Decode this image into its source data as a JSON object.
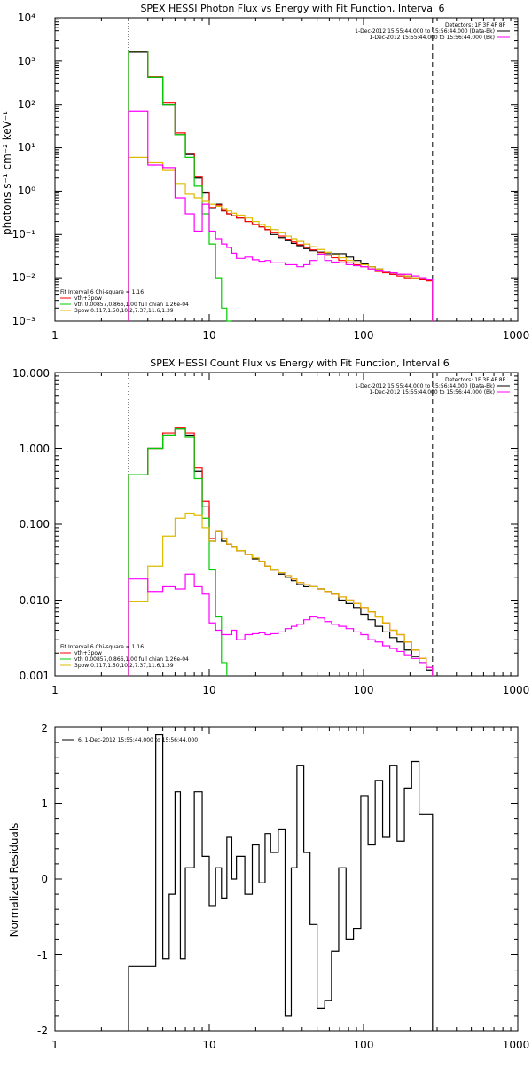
{
  "chart_data": [
    {
      "type": "line",
      "title": "SPEX HESSI Photon Flux vs Energy with Fit Function, Interval 6",
      "ylabel": "photons s⁻¹ cm⁻² keV⁻¹",
      "xlabel": "",
      "xscale": "log",
      "yscale": "log",
      "xlim": [
        1,
        1000
      ],
      "ylim": [
        0.001,
        10000
      ],
      "x_ticks": [
        "1",
        "10",
        "100",
        "1000"
      ],
      "y_ticks": [
        "10⁻³",
        "10⁻²",
        "10⁻¹",
        "10⁰",
        "10¹",
        "10²",
        "10³",
        "10⁴"
      ],
      "vlines": [
        3,
        280
      ],
      "legend_right": {
        "header": "Detectors: 1F 3F 4F 8F",
        "lines": [
          "1-Dec-2012 15:55:44.000 to 15:56:44.000 (Data-Bk)",
          "1-Dec-2012 15:55:44.000 to 15:56:44.000 (Bk)"
        ],
        "colors": [
          "#000000",
          "#ff00ff"
        ]
      },
      "legend_left": {
        "header": "Fit Interval 6   Chi-square = 1.16",
        "lines": [
          "vth+3pow",
          "vth 0.00857,0.866,1.00  full chian 1.26e-04",
          "3pow 0.117,1.50,10.2,7.37,11.6,1.39"
        ],
        "colors": [
          "#ff0000",
          "#00cc00",
          "#ddbb00"
        ]
      },
      "edges": [
        3,
        4,
        5,
        6,
        7,
        8,
        9,
        10,
        11,
        12,
        13,
        14,
        15,
        17,
        19,
        21,
        23,
        25,
        28,
        31,
        34,
        37,
        41,
        45,
        50,
        56,
        62,
        69,
        77,
        86,
        96,
        107,
        119,
        133,
        148,
        165,
        184,
        205,
        229,
        255,
        280
      ],
      "series": [
        {
          "name": "Data-Bk",
          "color": "#000000",
          "values": [
            1600,
            420,
            100,
            20,
            7,
            2,
            0.9,
            0.4,
            0.5,
            0.35,
            0.3,
            0.27,
            0.24,
            0.2,
            0.17,
            0.15,
            0.13,
            0.1,
            0.085,
            0.072,
            0.062,
            0.055,
            0.047,
            0.042,
            0.039,
            0.036,
            0.036,
            0.036,
            0.03,
            0.025,
            0.021,
            0.018,
            0.016,
            0.014,
            0.012,
            0.012,
            0.011,
            0.01,
            0.0095,
            0.0088
          ]
        },
        {
          "name": "vth+3pow",
          "color": "#ff0000",
          "values": [
            1700,
            430,
            110,
            22,
            7.5,
            2.2,
            0.95,
            0.42,
            0.48,
            0.36,
            0.3,
            0.27,
            0.24,
            0.2,
            0.17,
            0.15,
            0.13,
            0.11,
            0.092,
            0.078,
            0.067,
            0.058,
            0.05,
            0.044,
            0.038,
            0.033,
            0.029,
            0.025,
            0.022,
            0.02,
            0.018,
            0.016,
            0.014,
            0.013,
            0.012,
            0.011,
            0.01,
            0.0095,
            0.009,
            0.0085
          ]
        },
        {
          "name": "vth",
          "color": "#00cc00",
          "values": [
            1700,
            420,
            100,
            20,
            6,
            1.3,
            0.3,
            0.06,
            0.01,
            0.002,
            0.0006
          ]
        },
        {
          "name": "3pow",
          "color": "#ddbb00",
          "values": [
            6,
            4.5,
            3,
            1.5,
            0.85,
            0.7,
            0.58,
            0.5,
            0.45,
            0.4,
            0.35,
            0.31,
            0.28,
            0.24,
            0.2,
            0.17,
            0.15,
            0.13,
            0.11,
            0.092,
            0.08,
            0.069,
            0.06,
            0.052,
            0.045,
            0.039,
            0.034,
            0.029,
            0.025,
            0.022,
            0.02,
            0.018,
            0.016,
            0.014,
            0.013,
            0.012,
            0.011,
            0.01,
            0.0095,
            0.009
          ]
        },
        {
          "name": "Bk",
          "color": "#ff00ff",
          "values": [
            70,
            4,
            3.5,
            0.7,
            0.3,
            0.12,
            0.5,
            0.12,
            0.08,
            0.06,
            0.05,
            0.037,
            0.028,
            0.03,
            0.026,
            0.024,
            0.025,
            0.022,
            0.022,
            0.02,
            0.02,
            0.018,
            0.02,
            0.025,
            0.035,
            0.025,
            0.023,
            0.022,
            0.02,
            0.019,
            0.018,
            0.016,
            0.015,
            0.014,
            0.013,
            0.012,
            0.012,
            0.011,
            0.01,
            0.009
          ]
        }
      ]
    },
    {
      "type": "line",
      "title": "SPEX HESSI Count Flux vs Energy with Fit Function, Interval 6",
      "xlabel": "",
      "ylabel": "",
      "xscale": "log",
      "yscale": "log",
      "xlim": [
        1,
        1000
      ],
      "ylim": [
        0.001,
        10
      ],
      "x_ticks": [
        "1",
        "10",
        "100",
        "1000"
      ],
      "y_ticks": [
        "0.001",
        "0.010",
        "0.100",
        "1.000",
        "10.000"
      ],
      "vlines": [
        3,
        280
      ],
      "legend_right": {
        "header": "Detectors: 1F 3F 4F 8F",
        "lines": [
          "1-Dec-2012 15:55:44.000 to 15:56:44.000 (Data-Bk)",
          "1-Dec-2012 15:55:44.000 to 15:56:44.000 (Bk)"
        ],
        "colors": [
          "#000000",
          "#ff00ff"
        ]
      },
      "legend_left": {
        "header": "Fit Interval 6   Chi-square = 1.16",
        "lines": [
          "vth+3pow",
          "vth 0.00857,0.866,1.00  full chian 1.26e-04",
          "3pow 0.117,1.50,10.2,7.37,11.6,1.39"
        ],
        "colors": [
          "#ff0000",
          "#00cc00",
          "#ddbb00"
        ]
      },
      "edges": [
        3,
        4,
        5,
        6,
        7,
        8,
        9,
        10,
        11,
        12,
        13,
        14,
        15,
        17,
        19,
        21,
        23,
        25,
        28,
        31,
        34,
        37,
        41,
        45,
        50,
        56,
        62,
        69,
        77,
        86,
        96,
        107,
        119,
        133,
        148,
        165,
        184,
        205,
        229,
        255,
        280
      ],
      "series": [
        {
          "name": "Data-Bk",
          "color": "#000000",
          "values": [
            0.45,
            1.0,
            1.5,
            1.8,
            1.5,
            0.5,
            0.17,
            0.06,
            0.08,
            0.06,
            0.055,
            0.05,
            0.045,
            0.04,
            0.035,
            0.032,
            0.028,
            0.025,
            0.022,
            0.02,
            0.018,
            0.016,
            0.015,
            0.015,
            0.014,
            0.013,
            0.012,
            0.01,
            0.009,
            0.008,
            0.0065,
            0.0055,
            0.0045,
            0.0038,
            0.0032,
            0.0028,
            0.0022,
            0.0018,
            0.0015,
            0.0012
          ]
        },
        {
          "name": "vth+3pow",
          "color": "#ff0000",
          "values": [
            0.45,
            1.0,
            1.6,
            1.9,
            1.6,
            0.55,
            0.2,
            0.065,
            0.08,
            0.065,
            0.055,
            0.05,
            0.045,
            0.04,
            0.036,
            0.032,
            0.028,
            0.025,
            0.023,
            0.021,
            0.019,
            0.017,
            0.016,
            0.015,
            0.014,
            0.013,
            0.012,
            0.011,
            0.01,
            0.009,
            0.008,
            0.007,
            0.006,
            0.005,
            0.004,
            0.0035,
            0.0028,
            0.0022,
            0.0017,
            0.0013
          ]
        },
        {
          "name": "vth",
          "color": "#00cc00",
          "values": [
            0.45,
            1.0,
            1.5,
            1.8,
            1.4,
            0.4,
            0.12,
            0.025,
            0.006,
            0.0015
          ]
        },
        {
          "name": "3pow",
          "color": "#ddbb00",
          "values": [
            0.0095,
            0.028,
            0.07,
            0.12,
            0.14,
            0.13,
            0.09,
            0.06,
            0.08,
            0.065,
            0.055,
            0.05,
            0.045,
            0.04,
            0.036,
            0.032,
            0.028,
            0.025,
            0.023,
            0.021,
            0.019,
            0.017,
            0.016,
            0.015,
            0.014,
            0.013,
            0.012,
            0.011,
            0.01,
            0.009,
            0.008,
            0.007,
            0.006,
            0.005,
            0.004,
            0.0035,
            0.0028,
            0.0022,
            0.0017,
            0.0013
          ]
        },
        {
          "name": "Bk",
          "color": "#ff00ff",
          "values": [
            0.019,
            0.013,
            0.015,
            0.014,
            0.022,
            0.015,
            0.012,
            0.005,
            0.004,
            0.0035,
            0.0035,
            0.004,
            0.003,
            0.0035,
            0.0036,
            0.0037,
            0.0035,
            0.0036,
            0.0038,
            0.0042,
            0.0045,
            0.0048,
            0.0055,
            0.006,
            0.0058,
            0.0052,
            0.0048,
            0.0045,
            0.0042,
            0.0038,
            0.0035,
            0.003,
            0.0028,
            0.0025,
            0.0023,
            0.0021,
            0.0019,
            0.0017,
            0.0015,
            0.0013
          ]
        }
      ]
    },
    {
      "type": "line",
      "title": "",
      "xlabel": "",
      "ylabel": "Normalized Residuals",
      "xscale": "log",
      "yscale": "linear",
      "xlim": [
        1,
        1000
      ],
      "ylim": [
        -2,
        2
      ],
      "x_ticks": [
        "1",
        "10",
        "100",
        "1000"
      ],
      "y_ticks": [
        "-2",
        "-1",
        "0",
        "1",
        "2"
      ],
      "legend_line": "6, 1-Dec-2012 15:55:44.000 to 15:56:44.000",
      "edges": [
        3,
        4,
        4.5,
        5,
        5.5,
        6,
        6.5,
        7,
        8,
        9,
        10,
        11,
        12,
        13,
        14,
        15,
        17,
        19,
        21,
        23,
        25,
        28,
        31,
        34,
        37,
        41,
        45,
        50,
        56,
        62,
        69,
        77,
        86,
        96,
        107,
        119,
        133,
        148,
        165,
        184,
        205,
        229,
        255,
        280
      ],
      "series": [
        {
          "name": "6, 1-Dec-2012 15:55:44.000 to 15:56:44.000",
          "color": "#000000",
          "values": [
            -1.15,
            -1.15,
            1.9,
            -1.05,
            -0.2,
            1.15,
            -1.05,
            0.15,
            1.15,
            0.3,
            -0.35,
            0.15,
            -0.25,
            0.55,
            0.0,
            0.3,
            -0.2,
            0.45,
            -0.05,
            0.6,
            0.35,
            0.65,
            -1.8,
            0.15,
            1.5,
            0.35,
            -0.6,
            -1.7,
            -1.6,
            -0.95,
            0.15,
            -0.8,
            -0.65,
            1.1,
            0.45,
            1.3,
            0.55,
            1.5,
            0.5,
            1.2,
            1.55,
            0.85,
            0.85
          ]
        }
      ]
    }
  ]
}
